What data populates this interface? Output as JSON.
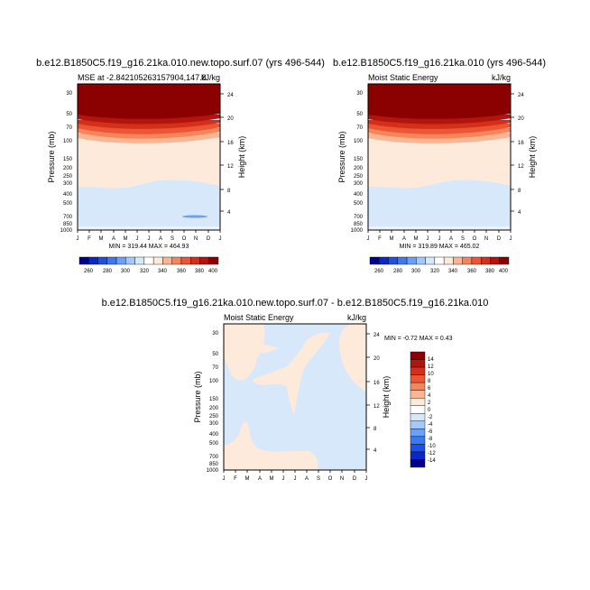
{
  "chart_data": [
    {
      "type": "heatmap",
      "title": "b.e12.B1850C5.f19_g16.21ka.010.new.topo.surf.07 (yrs 496-544)",
      "left_label": "MSE at -2.8421052631579​04,147.8",
      "right_label": "kJ/kg",
      "ylabel": "Pressure (mb)",
      "y2label": "Height (km)",
      "x_ticks": [
        "J",
        "F",
        "M",
        "A",
        "M",
        "J",
        "J",
        "A",
        "S",
        "O",
        "N",
        "D",
        "J"
      ],
      "y_ticks": [
        30,
        50,
        70,
        100,
        150,
        200,
        250,
        300,
        400,
        500,
        700,
        850,
        1000
      ],
      "y2_ticks": [
        4,
        8,
        12,
        16,
        20,
        24
      ],
      "ylim": [
        1000,
        20
      ],
      "minmax": "MIN = 319.44 MAX = 464.93",
      "legend_levels": [
        260,
        280,
        300,
        320,
        340,
        360,
        380,
        400
      ],
      "contour_bands": [
        {
          "level": 400,
          "top_p": 20,
          "bottom_p": 48,
          "color": "#8b0000"
        },
        {
          "level": 390,
          "top_p": 48,
          "bottom_p": 56,
          "color": "#b2150e"
        },
        {
          "level": 380,
          "top_p": 56,
          "bottom_p": 64,
          "color": "#d3301c"
        },
        {
          "level": 370,
          "top_p": 64,
          "bottom_p": 74,
          "color": "#ec5634"
        },
        {
          "level": 360,
          "top_p": 74,
          "bottom_p": 86,
          "color": "#f7855c"
        },
        {
          "level": 350,
          "top_p": 86,
          "bottom_p": 105,
          "color": "#fcb592"
        },
        {
          "level": 340,
          "top_p": 105,
          "bottom_p": 290,
          "color": "#feeadb"
        },
        {
          "level": 320,
          "top_p": 290,
          "bottom_p": 1000,
          "color": "#d6e8fa"
        }
      ]
    },
    {
      "type": "heatmap",
      "title": "b.e12.B1850C5.f19_g16.21ka.010 (yrs 496-544)",
      "left_label": "Moist Static Energy",
      "right_label": "kJ/kg",
      "ylabel": "Pressure (mb)",
      "y2label": "Height (km)",
      "x_ticks": [
        "J",
        "F",
        "M",
        "A",
        "M",
        "J",
        "J",
        "A",
        "S",
        "O",
        "N",
        "D",
        "J"
      ],
      "y_ticks": [
        30,
        50,
        70,
        100,
        150,
        200,
        250,
        300,
        400,
        500,
        700,
        850,
        1000
      ],
      "y2_ticks": [
        4,
        8,
        12,
        16,
        20,
        24
      ],
      "ylim": [
        1000,
        20
      ],
      "minmax": "MIN = 319.89 MAX = 465.02",
      "legend_levels": [
        260,
        280,
        300,
        320,
        340,
        360,
        380,
        400
      ]
    },
    {
      "type": "heatmap",
      "title": "b.e12.B1850C5.f19_g16.21ka.010.new.topo.surf.07 - b.e12.B1850C5.f19_g16.21ka.010",
      "left_label": "Moist Static Energy",
      "right_label": "kJ/kg",
      "ylabel": "Pressure (mb)",
      "y2label": "Height (km)",
      "x_ticks": [
        "J",
        "F",
        "M",
        "A",
        "M",
        "J",
        "J",
        "A",
        "S",
        "O",
        "N",
        "D",
        "J"
      ],
      "y_ticks": [
        30,
        50,
        70,
        100,
        150,
        200,
        250,
        300,
        400,
        500,
        700,
        850,
        1000
      ],
      "y2_ticks": [
        4,
        8,
        12,
        16,
        20,
        24
      ],
      "ylim": [
        1000,
        20
      ],
      "minmax": "MIN =  -0.72 MAX =   0.43",
      "legend_levels": [
        14,
        12,
        10,
        8,
        6,
        4,
        2,
        0,
        -2,
        -4,
        -6,
        -8,
        -10,
        -12,
        -14
      ]
    }
  ],
  "palettes": {
    "abs": [
      "#00008b",
      "#0a28c8",
      "#1e4fe6",
      "#3c78f0",
      "#6e9ff6",
      "#a4c8fa",
      "#d6e8fa",
      "#ffffff",
      "#feeadb",
      "#fcb592",
      "#f7855c",
      "#ec5634",
      "#d3301c",
      "#b2150e",
      "#8b0000"
    ],
    "diff": [
      "#8b0000",
      "#b2150e",
      "#d3301c",
      "#ec5634",
      "#f7855c",
      "#fcb592",
      "#feeadb",
      "#ffffff",
      "#d6e8fa",
      "#a4c8fa",
      "#6e9ff6",
      "#3c78f0",
      "#1e4fe6",
      "#0a28c8",
      "#00008b"
    ]
  }
}
